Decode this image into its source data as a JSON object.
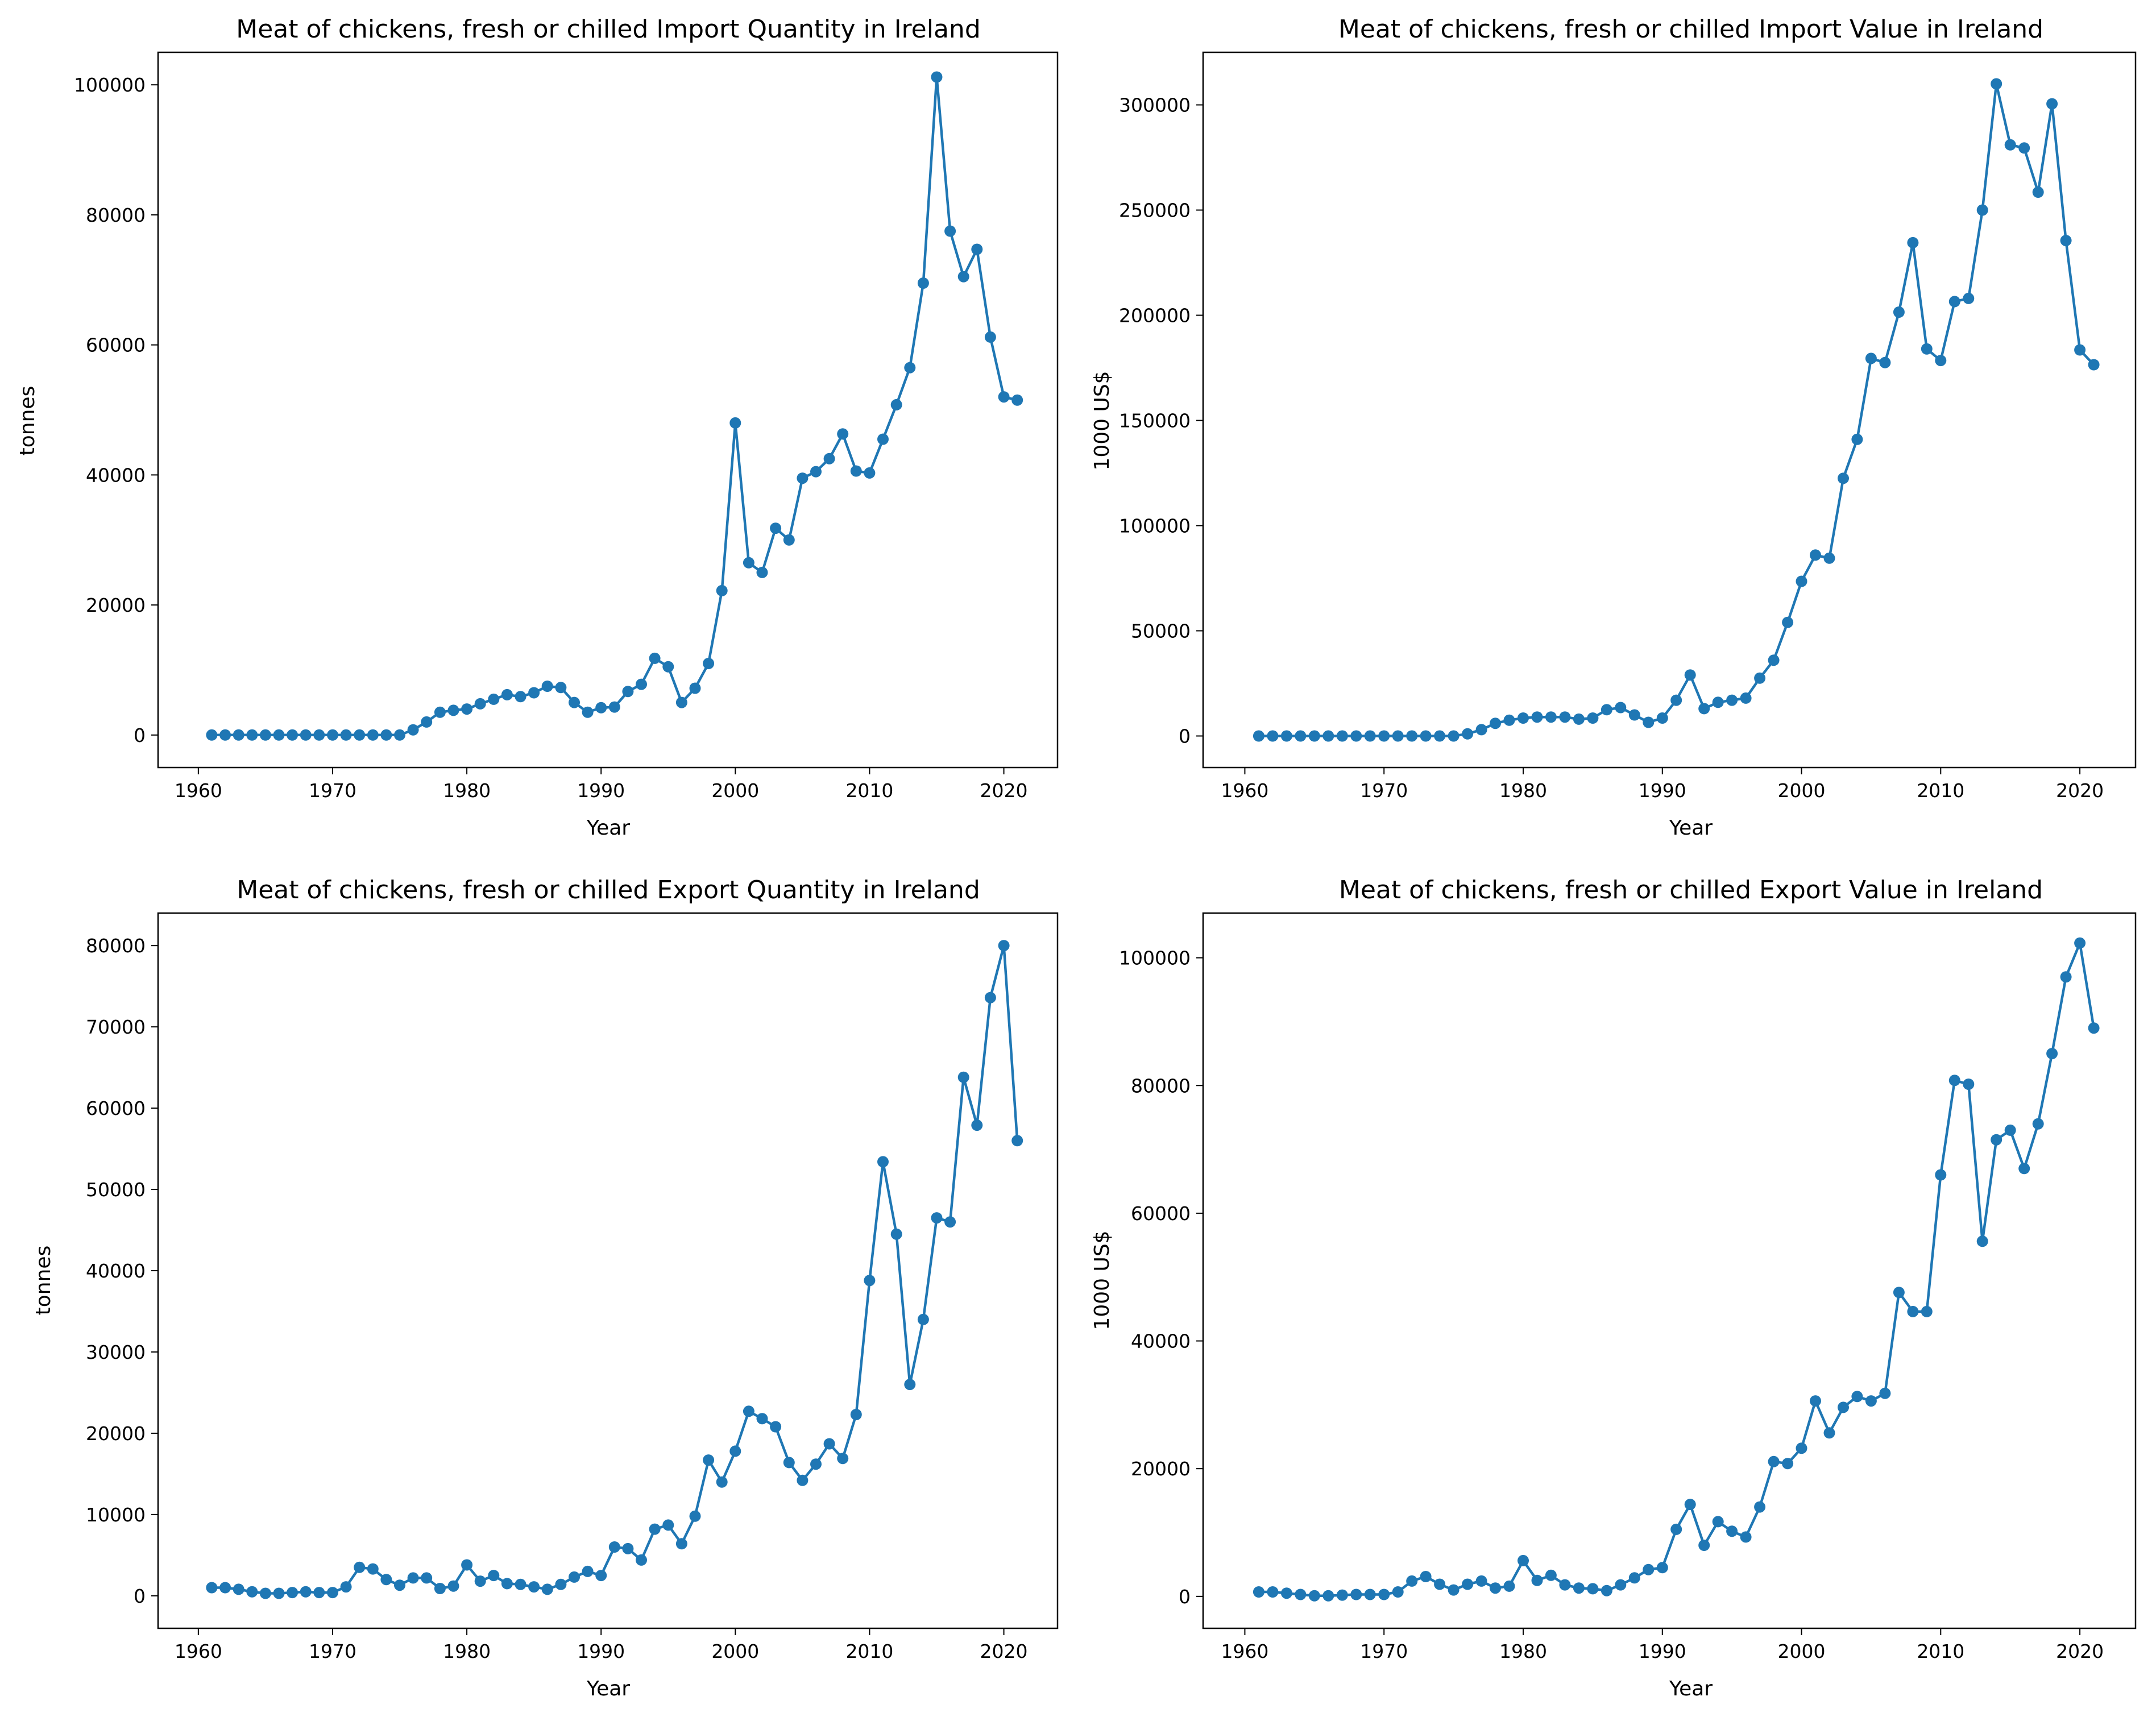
{
  "colors": {
    "series": "#1f77b4",
    "axis": "#000000",
    "background": "#ffffff"
  },
  "chart_data": [
    {
      "type": "line",
      "title": "Meat of chickens, fresh or chilled Import Quantity in Ireland",
      "xlabel": "Year",
      "ylabel": "tonnes",
      "xlim": [
        1957.0,
        2024.0
      ],
      "ylim": [
        -5000,
        105000
      ],
      "xticks": [
        1960,
        1970,
        1980,
        1990,
        2000,
        2010,
        2020
      ],
      "yticks": [
        0,
        20000,
        40000,
        60000,
        80000,
        100000
      ],
      "x": [
        1961,
        1962,
        1963,
        1964,
        1965,
        1966,
        1967,
        1968,
        1969,
        1970,
        1971,
        1972,
        1973,
        1974,
        1975,
        1976,
        1977,
        1978,
        1979,
        1980,
        1981,
        1982,
        1983,
        1984,
        1985,
        1986,
        1987,
        1988,
        1989,
        1990,
        1991,
        1992,
        1993,
        1994,
        1995,
        1996,
        1997,
        1998,
        1999,
        2000,
        2001,
        2002,
        2003,
        2004,
        2005,
        2006,
        2007,
        2008,
        2009,
        2010,
        2011,
        2012,
        2013,
        2014,
        2015,
        2016,
        2017,
        2018,
        2019,
        2020,
        2021
      ],
      "values": [
        0,
        0,
        0,
        0,
        0,
        0,
        0,
        0,
        0,
        0,
        0,
        0,
        0,
        0,
        0,
        800,
        2000,
        3500,
        3800,
        4000,
        4800,
        5500,
        6200,
        5900,
        6500,
        7500,
        7300,
        5000,
        3500,
        4200,
        4300,
        6700,
        7800,
        11800,
        10500,
        5000,
        7200,
        11000,
        22200,
        48000,
        26500,
        25000,
        31800,
        30000,
        39500,
        40500,
        42500,
        46300,
        40600,
        40300,
        45500,
        50800,
        56500,
        69500,
        101200,
        77500,
        70500,
        74700,
        61200,
        52000,
        51500
      ]
    },
    {
      "type": "line",
      "title": "Meat of chickens, fresh or chilled Import Value in Ireland",
      "xlabel": "Year",
      "ylabel": "1000 US$",
      "xlim": [
        1957.0,
        2024.0
      ],
      "ylim": [
        -15000,
        325000
      ],
      "xticks": [
        1960,
        1970,
        1980,
        1990,
        2000,
        2010,
        2020
      ],
      "yticks": [
        0,
        50000,
        100000,
        150000,
        200000,
        250000,
        300000
      ],
      "x": [
        1961,
        1962,
        1963,
        1964,
        1965,
        1966,
        1967,
        1968,
        1969,
        1970,
        1971,
        1972,
        1973,
        1974,
        1975,
        1976,
        1977,
        1978,
        1979,
        1980,
        1981,
        1982,
        1983,
        1984,
        1985,
        1986,
        1987,
        1988,
        1989,
        1990,
        1991,
        1992,
        1993,
        1994,
        1995,
        1996,
        1997,
        1998,
        1999,
        2000,
        2001,
        2002,
        2003,
        2004,
        2005,
        2006,
        2007,
        2008,
        2009,
        2010,
        2011,
        2012,
        2013,
        2014,
        2015,
        2016,
        2017,
        2018,
        2019,
        2020,
        2021
      ],
      "values": [
        0,
        0,
        0,
        0,
        0,
        0,
        0,
        0,
        0,
        0,
        0,
        0,
        0,
        0,
        0,
        1000,
        3000,
        6000,
        7500,
        8500,
        9000,
        9000,
        9000,
        8000,
        8500,
        12500,
        13500,
        10000,
        6500,
        8500,
        17000,
        29000,
        13000,
        16000,
        17000,
        18000,
        27500,
        36000,
        54000,
        73500,
        86000,
        84500,
        122500,
        141000,
        179500,
        177500,
        201500,
        234500,
        184000,
        178500,
        206500,
        208000,
        250000,
        310000,
        281000,
        279500,
        258500,
        300500,
        235500,
        183500,
        176500
      ]
    },
    {
      "type": "line",
      "title": "Meat of chickens, fresh or chilled Export Quantity in Ireland",
      "xlabel": "Year",
      "ylabel": "tonnes",
      "xlim": [
        1957.0,
        2024.0
      ],
      "ylim": [
        -4000,
        84000
      ],
      "xticks": [
        1960,
        1970,
        1980,
        1990,
        2000,
        2010,
        2020
      ],
      "yticks": [
        0,
        10000,
        20000,
        30000,
        40000,
        50000,
        60000,
        70000,
        80000
      ],
      "x": [
        1961,
        1962,
        1963,
        1964,
        1965,
        1966,
        1967,
        1968,
        1969,
        1970,
        1971,
        1972,
        1973,
        1974,
        1975,
        1976,
        1977,
        1978,
        1979,
        1980,
        1981,
        1982,
        1983,
        1984,
        1985,
        1986,
        1987,
        1988,
        1989,
        1990,
        1991,
        1992,
        1993,
        1994,
        1995,
        1996,
        1997,
        1998,
        1999,
        2000,
        2001,
        2002,
        2003,
        2004,
        2005,
        2006,
        2007,
        2008,
        2009,
        2010,
        2011,
        2012,
        2013,
        2014,
        2015,
        2016,
        2017,
        2018,
        2019,
        2020,
        2021
      ],
      "values": [
        1000,
        1000,
        800,
        500,
        300,
        300,
        400,
        500,
        400,
        400,
        1100,
        3500,
        3300,
        2000,
        1300,
        2200,
        2200,
        900,
        1200,
        3800,
        1800,
        2500,
        1500,
        1400,
        1100,
        800,
        1400,
        2300,
        3000,
        2500,
        6000,
        5800,
        4400,
        8200,
        8700,
        6400,
        9800,
        16700,
        14000,
        17800,
        22700,
        21800,
        20800,
        16400,
        14200,
        16200,
        18700,
        16900,
        22300,
        38800,
        53400,
        44500,
        26000,
        34000,
        46500,
        46000,
        63800,
        57900,
        73600,
        80000,
        56000
      ]
    },
    {
      "type": "line",
      "title": "Meat of chickens, fresh or chilled Export Value in Ireland",
      "xlabel": "Year",
      "ylabel": "1000 US$",
      "xlim": [
        1957.0,
        2024.0
      ],
      "ylim": [
        -5000,
        107000
      ],
      "xticks": [
        1960,
        1970,
        1980,
        1990,
        2000,
        2010,
        2020
      ],
      "yticks": [
        0,
        20000,
        40000,
        60000,
        80000,
        100000
      ],
      "x": [
        1961,
        1962,
        1963,
        1964,
        1965,
        1966,
        1967,
        1968,
        1969,
        1970,
        1971,
        1972,
        1973,
        1974,
        1975,
        1976,
        1977,
        1978,
        1979,
        1980,
        1981,
        1982,
        1983,
        1984,
        1985,
        1986,
        1987,
        1988,
        1989,
        1990,
        1991,
        1992,
        1993,
        1994,
        1995,
        1996,
        1997,
        1998,
        1999,
        2000,
        2001,
        2002,
        2003,
        2004,
        2005,
        2006,
        2007,
        2008,
        2009,
        2010,
        2011,
        2012,
        2013,
        2014,
        2015,
        2016,
        2017,
        2018,
        2019,
        2020,
        2021
      ],
      "values": [
        700,
        700,
        500,
        300,
        100,
        100,
        200,
        300,
        300,
        300,
        700,
        2400,
        3100,
        1900,
        1000,
        1900,
        2400,
        1300,
        1600,
        5600,
        2500,
        3300,
        1800,
        1300,
        1200,
        900,
        1800,
        2900,
        4200,
        4500,
        10500,
        14400,
        8000,
        11700,
        10200,
        9300,
        14000,
        21100,
        20800,
        23200,
        30600,
        25600,
        29600,
        31300,
        30600,
        31800,
        47600,
        44600,
        44600,
        66000,
        80800,
        80200,
        55600,
        71500,
        73000,
        67000,
        74000,
        85000,
        97000,
        102300,
        89000
      ]
    }
  ]
}
